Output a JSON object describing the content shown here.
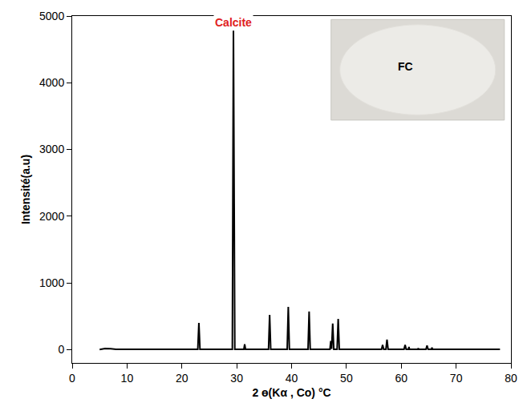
{
  "chart_data": {
    "type": "line",
    "x_label": "2 ɵ(Kα , Co) °C",
    "y_label": "Intensité(a.u)",
    "x": [
      5,
      6,
      7,
      8,
      22.9,
      23.1,
      23.3,
      29.2,
      29.4,
      29.5,
      29.65,
      31.3,
      31.45,
      31.6,
      35.8,
      36.0,
      36.2,
      39.2,
      39.4,
      39.6,
      43.0,
      43.2,
      43.4,
      47.0,
      47.15,
      47.3,
      47.5,
      47.7,
      48.3,
      48.5,
      48.7,
      56.4,
      56.6,
      56.8,
      57.2,
      57.4,
      57.6,
      60.5,
      60.7,
      60.9,
      61.3,
      61.4,
      61.5,
      63.0,
      63.1,
      63.2,
      64.5,
      64.7,
      64.9,
      65.5,
      65.6,
      65.7,
      78
    ],
    "values": [
      0,
      15,
      12,
      5,
      5,
      400,
      5,
      5,
      4780,
      2100,
      5,
      5,
      80,
      5,
      5,
      520,
      5,
      5,
      640,
      5,
      5,
      570,
      5,
      5,
      130,
      10,
      390,
      5,
      5,
      460,
      5,
      5,
      70,
      5,
      5,
      150,
      5,
      5,
      70,
      5,
      5,
      40,
      5,
      5,
      20,
      5,
      5,
      60,
      5,
      5,
      30,
      5,
      5
    ],
    "color": "#000000",
    "xlim": [
      0,
      80
    ],
    "xticks": [
      0,
      10,
      20,
      30,
      40,
      50,
      60,
      70,
      80
    ],
    "ylim": [
      -200,
      5000
    ],
    "yticks": [
      0,
      1000,
      2000,
      3000,
      4000,
      5000
    ],
    "grid": false,
    "annotations": [
      {
        "text": "Calcite",
        "x": 29.4,
        "y": 4780,
        "color": "#e02020"
      }
    ],
    "inset": {
      "label": "FC"
    }
  }
}
